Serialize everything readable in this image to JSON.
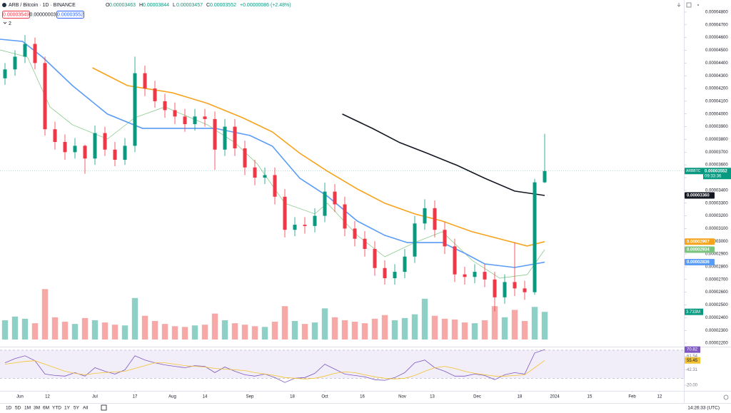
{
  "header": {
    "symbol": "ARB / Bitcoin · 1D · BINANCE",
    "ohlc": [
      {
        "label": "O",
        "value": "0.00003463"
      },
      {
        "label": "H",
        "value": "0.00003844"
      },
      {
        "label": "L",
        "value": "0.00003457"
      },
      {
        "label": "C",
        "value": "0.00003552"
      }
    ],
    "change": "+0.00000086 (+2.48%)",
    "order_buttons": [
      "0.00003549",
      "0.00000003",
      "0.00003552"
    ],
    "indicator_count": "2"
  },
  "toolbar": {
    "ranges": [
      "1D",
      "5D",
      "1M",
      "3M",
      "6M",
      "YTD",
      "1Y",
      "5Y",
      "All"
    ],
    "clock": "14:26:33 (UTC)"
  },
  "chart_data": [
    {
      "type": "candlestick",
      "x": [
        -6,
        -2,
        2,
        6,
        10,
        14,
        18,
        22,
        26,
        30,
        34,
        38,
        42,
        46,
        50,
        54,
        58,
        62,
        66,
        70,
        74,
        78,
        82,
        86,
        90,
        94,
        98,
        102,
        106,
        110,
        114,
        118,
        122,
        126,
        130,
        134,
        138,
        142,
        146,
        150,
        154,
        158,
        162,
        166,
        170,
        174,
        178,
        182,
        186,
        190,
        194,
        198,
        202,
        206,
        210
      ],
      "open": [
        4.28e-05,
        4.35e-05,
        4.45e-05,
        4.55e-05,
        4.4e-05,
        3.88e-05,
        3.78e-05,
        3.7e-05,
        3.75e-05,
        3.65e-05,
        3.85e-05,
        3.72e-05,
        3.64e-05,
        3.75e-05,
        4.32e-05,
        4.2e-05,
        4.1e-05,
        4.03e-05,
        3.98e-05,
        3.92e-05,
        3.98e-05,
        3.96e-05,
        3.72e-05,
        3.9e-05,
        3.73e-05,
        3.58e-05,
        3.5e-05,
        3.52e-05,
        3.35e-05,
        3.09e-05,
        3.13e-05,
        3.12e-05,
        3.2e-05,
        3.39e-05,
        3.29e-05,
        3.1e-05,
        3.02e-05,
        2.94e-05,
        2.79e-05,
        2.71e-05,
        2.76e-05,
        2.88e-05,
        3.14e-05,
        3.26e-05,
        3.09e-05,
        2.96e-05,
        2.74e-05,
        2.72e-05,
        2.76e-05,
        2.7e-05,
        2.56e-05,
        2.68e-05,
        2.63e-05,
        2.6e-05,
        3.463e-05
      ],
      "high": [
        4.4e-05,
        4.5e-05,
        4.62e-05,
        4.6e-05,
        4.45e-05,
        3.94e-05,
        3.84e-05,
        3.81e-05,
        3.76e-05,
        3.91e-05,
        3.9e-05,
        3.78e-05,
        3.81e-05,
        4.45e-05,
        4.38e-05,
        4.26e-05,
        4.16e-05,
        4.09e-05,
        4.04e-05,
        4.04e-05,
        4.04e-05,
        4.02e-05,
        3.96e-05,
        3.96e-05,
        3.79e-05,
        3.64e-05,
        3.58e-05,
        3.58e-05,
        3.41e-05,
        3.19e-05,
        3.19e-05,
        3.26e-05,
        3.46e-05,
        3.45e-05,
        3.35e-05,
        3.16e-05,
        3.08e-05,
        3e-05,
        2.85e-05,
        2.82e-05,
        2.94e-05,
        3.2e-05,
        3.33e-05,
        3.32e-05,
        3.15e-05,
        3.02e-05,
        2.8e-05,
        2.82e-05,
        2.82e-05,
        2.76e-05,
        2.74e-05,
        2.99e-05,
        2.69e-05,
        3.49e-05,
        3.844e-05
      ],
      "low": [
        4.23e-05,
        4.3e-05,
        4.4e-05,
        4.35e-05,
        3.83e-05,
        3.72e-05,
        3.64e-05,
        3.65e-05,
        3.53e-05,
        3.6e-05,
        3.67e-05,
        3.59e-05,
        3.6e-05,
        3.7e-05,
        4.14e-05,
        4.05e-05,
        3.97e-05,
        3.92e-05,
        3.86e-05,
        3.87e-05,
        3.9e-05,
        3.56e-05,
        3.67e-05,
        3.67e-05,
        3.52e-05,
        3.44e-05,
        3.45e-05,
        3.29e-05,
        3.03e-05,
        3.04e-05,
        3.06e-05,
        3.07e-05,
        3.15e-05,
        3.23e-05,
        3.04e-05,
        2.96e-05,
        2.88e-05,
        2.73e-05,
        2.66e-05,
        2.66e-05,
        2.71e-05,
        2.83e-05,
        3.09e-05,
        3.03e-05,
        2.9e-05,
        2.68e-05,
        2.66e-05,
        2.67e-05,
        2.64e-05,
        2.45e-05,
        2.51e-05,
        2.57e-05,
        2.54e-05,
        2.58e-05,
        3.457e-05
      ],
      "close": [
        4.35e-05,
        4.45e-05,
        4.55e-05,
        4.4e-05,
        3.88e-05,
        3.78e-05,
        3.7e-05,
        3.75e-05,
        3.65e-05,
        3.85e-05,
        3.72e-05,
        3.64e-05,
        3.75e-05,
        4.32e-05,
        4.2e-05,
        4.1e-05,
        4.03e-05,
        3.98e-05,
        3.92e-05,
        3.98e-05,
        3.96e-05,
        3.72e-05,
        3.9e-05,
        3.73e-05,
        3.58e-05,
        3.5e-05,
        3.52e-05,
        3.35e-05,
        3.09e-05,
        3.13e-05,
        3.12e-05,
        3.2e-05,
        3.39e-05,
        3.29e-05,
        3.1e-05,
        3.02e-05,
        2.94e-05,
        2.79e-05,
        2.71e-05,
        2.76e-05,
        2.88e-05,
        3.14e-05,
        3.26e-05,
        3.09e-05,
        2.96e-05,
        2.74e-05,
        2.72e-05,
        2.76e-05,
        2.7e-05,
        2.56e-05,
        2.68e-05,
        2.63e-05,
        2.6e-05,
        3.463e-05,
        3.552e-05
      ],
      "colors": {
        "up": "#089981",
        "down": "#f23645",
        "volume_up": "#8fd0c6",
        "volume_down": "#f7a9a7"
      },
      "volume": [
        2.6,
        3.1,
        2.8,
        2.2,
        6.8,
        3.0,
        2.4,
        2.1,
        2.9,
        2.6,
        2.3,
        2.0,
        1.9,
        5.6,
        3.2,
        2.5,
        2.1,
        1.8,
        1.7,
        1.9,
        2.0,
        3.5,
        2.6,
        2.2,
        2.0,
        1.8,
        1.7,
        2.4,
        4.5,
        2.5,
        2.1,
        2.3,
        4.2,
        3.0,
        2.6,
        2.4,
        2.2,
        2.8,
        3.3,
        2.6,
        2.9,
        3.4,
        5.5,
        3.2,
        2.8,
        2.7,
        2.3,
        2.2,
        2.6,
        4.5,
        3.0,
        4.0,
        2.5,
        4.4,
        3.733
      ],
      "volume_label": "3.733M",
      "symbol_tag": "ARBBTC",
      "last_price_label": "0.00003552",
      "countdown": "09:33:36",
      "series": [
        {
          "color": "#7bc47f",
          "x": [
            -8,
            3,
            12,
            21,
            35,
            46,
            58,
            75,
            86,
            95,
            106,
            118,
            123,
            135,
            146,
            158,
            169,
            181,
            192,
            203,
            210
          ],
          "values": [
            4.503e-05,
            4.447e-05,
            4.055e-05,
            3.915e-05,
            3.803e-05,
            3.971e-05,
            4.055e-05,
            3.915e-05,
            3.775e-05,
            3.607e-05,
            3.299e-05,
            3.215e-05,
            3.299e-05,
            3.047e-05,
            2.878e-05,
            2.99e-05,
            3.075e-05,
            2.85e-05,
            2.71e-05,
            2.738e-05,
            2.934e-05
          ],
          "last_label": "0.00002934"
        },
        {
          "color": "#5b9cf6",
          "x": [
            -8,
            1,
            9,
            21,
            35,
            49,
            63,
            78,
            92,
            101,
            112,
            123,
            135,
            146,
            155,
            169,
            178,
            186,
            198,
            210
          ],
          "values": [
            4.587e-05,
            4.57e-05,
            4.447e-05,
            4.223e-05,
            3.999e-05,
            3.887e-05,
            3.887e-05,
            3.887e-05,
            3.831e-05,
            3.747e-05,
            3.495e-05,
            3.355e-05,
            3.159e-05,
            3.047e-05,
            2.99e-05,
            2.99e-05,
            2.906e-05,
            2.822e-05,
            2.794e-05,
            2.836e-05
          ],
          "last_label": "0.00002836"
        },
        {
          "color": "#f7a21b",
          "x": [
            29,
            43,
            61,
            75,
            89,
            101,
            112,
            123,
            135,
            146,
            158,
            169,
            181,
            192,
            203,
            210
          ],
          "values": [
            4.363e-05,
            4.223e-05,
            4.167e-05,
            4.083e-05,
            3.971e-05,
            3.859e-05,
            3.691e-05,
            3.551e-05,
            3.411e-05,
            3.299e-05,
            3.215e-05,
            3.159e-05,
            3.075e-05,
            3.019e-05,
            2.963e-05,
            2.997e-05
          ],
          "last_label": "0.00002997"
        },
        {
          "color": "#131722",
          "x": [
            129,
            141,
            152,
            163,
            175,
            186,
            198,
            210
          ],
          "values": [
            3.999e-05,
            3.887e-05,
            3.775e-05,
            3.691e-05,
            3.596e-05,
            3.495e-05,
            3.394e-05,
            3.36e-05
          ],
          "last_label": "0.00003360"
        }
      ],
      "xlim": [
        -8,
        266
      ],
      "ylim": [
        2.178e-05,
        4.895e-05
      ],
      "xticks": [
        {
          "value": 0,
          "label": "Jun"
        },
        {
          "value": 11,
          "label": "12"
        },
        {
          "value": 30,
          "label": "Jul"
        },
        {
          "value": 46,
          "label": "17"
        },
        {
          "value": 61,
          "label": "Aug"
        },
        {
          "value": 74,
          "label": "14"
        },
        {
          "value": 92,
          "label": "Sep"
        },
        {
          "value": 109,
          "label": "18"
        },
        {
          "value": 122,
          "label": "Oct"
        },
        {
          "value": 137,
          "label": "16"
        },
        {
          "value": 153,
          "label": "Nov"
        },
        {
          "value": 165,
          "label": "13"
        },
        {
          "value": 183,
          "label": "Dec"
        },
        {
          "value": 200,
          "label": "18"
        },
        {
          "value": 214,
          "label": "2024"
        },
        {
          "value": 228,
          "label": "15"
        },
        {
          "value": 245,
          "label": "Feb"
        },
        {
          "value": 256,
          "label": "12"
        }
      ],
      "yticks": [
        {
          "value": 2.2e-05,
          "label": "0.00002200"
        },
        {
          "value": 2.3e-05,
          "label": "0.00002300"
        },
        {
          "value": 2.4e-05,
          "label": "0.00002400"
        },
        {
          "value": 2.5e-05,
          "label": "0.00002500"
        },
        {
          "value": 2.6e-05,
          "label": "0.00002600"
        },
        {
          "value": 2.7e-05,
          "label": "0.00002700"
        },
        {
          "value": 2.8e-05,
          "label": "0.00002800"
        },
        {
          "value": 2.9e-05,
          "label": "0.00002900"
        },
        {
          "value": 3e-05,
          "label": "0.00003000"
        },
        {
          "value": 3.1e-05,
          "label": "0.00003100"
        },
        {
          "value": 3.2e-05,
          "label": "0.00003200"
        },
        {
          "value": 3.3e-05,
          "label": "0.00003300"
        },
        {
          "value": 3.4e-05,
          "label": "0.00003400"
        },
        {
          "value": 3.5e-05,
          "label": "0.00003500"
        },
        {
          "value": 3.6e-05,
          "label": "0.00003600"
        },
        {
          "value": 3.7e-05,
          "label": "0.00003700"
        },
        {
          "value": 3.8e-05,
          "label": "0.00003800"
        },
        {
          "value": 3.9e-05,
          "label": "0.00003900"
        },
        {
          "value": 4e-05,
          "label": "0.00004000"
        },
        {
          "value": 4.1e-05,
          "label": "0.00004100"
        },
        {
          "value": 4.2e-05,
          "label": "0.00004200"
        },
        {
          "value": 4.3e-05,
          "label": "0.00004300"
        },
        {
          "value": 4.4e-05,
          "label": "0.00004400"
        },
        {
          "value": 4.5e-05,
          "label": "0.00004500"
        },
        {
          "value": 4.6e-05,
          "label": "0.00004600"
        },
        {
          "value": 4.7e-05,
          "label": "0.00004700"
        },
        {
          "value": 4.8e-05,
          "label": "0.00004800"
        }
      ]
    },
    {
      "type": "line",
      "x": [
        -6,
        -2,
        2,
        6,
        10,
        14,
        18,
        22,
        26,
        30,
        34,
        38,
        42,
        46,
        50,
        54,
        58,
        62,
        66,
        70,
        74,
        78,
        82,
        86,
        90,
        94,
        98,
        102,
        106,
        110,
        114,
        118,
        122,
        126,
        130,
        134,
        138,
        142,
        146,
        150,
        154,
        158,
        162,
        166,
        170,
        174,
        178,
        182,
        186,
        190,
        194,
        198,
        202,
        206,
        210
      ],
      "series": [
        {
          "color": "#7e57c2",
          "values": [
            52,
            58,
            62,
            55,
            36,
            34,
            33,
            38,
            33,
            45,
            40,
            36,
            42,
            62,
            56,
            52,
            49,
            47,
            45,
            48,
            47,
            38,
            46,
            40,
            35,
            33,
            36,
            31,
            24,
            30,
            31,
            37,
            50,
            43,
            36,
            34,
            32,
            28,
            27,
            31,
            38,
            52,
            56,
            45,
            40,
            33,
            33,
            36,
            34,
            28,
            35,
            38,
            36,
            66,
            70.82
          ]
        },
        {
          "color": "#f2c230",
          "values": [
            50,
            52,
            54,
            55,
            50,
            45,
            40,
            37,
            35,
            37,
            38,
            39,
            40,
            44,
            48,
            52,
            52,
            50,
            48,
            47,
            46,
            44,
            43,
            42,
            41,
            38,
            36,
            34,
            31,
            30,
            29,
            30,
            33,
            37,
            39,
            38,
            35,
            32,
            30,
            29,
            30,
            34,
            40,
            45,
            47,
            44,
            40,
            37,
            35,
            33,
            33,
            34,
            35,
            45,
            55.45
          ]
        }
      ],
      "band": [
        30,
        70
      ],
      "xlim": [
        -8,
        266
      ],
      "ylim": [
        13,
        73
      ],
      "yticks": [
        61.54,
        42.31,
        {
          "value": 20,
          "label": "20.00"
        }
      ]
    }
  ]
}
